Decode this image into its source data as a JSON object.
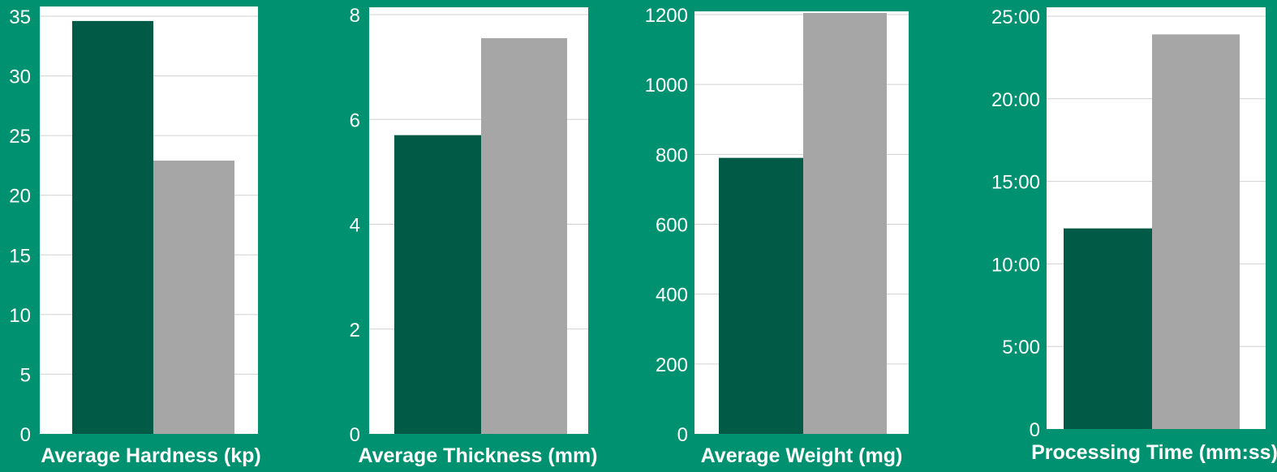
{
  "colors": {
    "background": "#009270",
    "plot_area": "#ffffff",
    "series_a": "#005a45",
    "series_b": "#a6a6a6",
    "text": "#ffffff"
  },
  "chart_data": [
    {
      "type": "bar",
      "xlabel": "Average Hardness (kp)",
      "ylim": [
        0,
        35
      ],
      "yticks": [
        0,
        5,
        10,
        15,
        20,
        25,
        30,
        35
      ],
      "ytick_labels": [
        "0",
        "5",
        "10",
        "15",
        "20",
        "25",
        "30",
        "35"
      ],
      "grid": true,
      "values": [
        34.6,
        22.9
      ]
    },
    {
      "type": "bar",
      "xlabel": "Average Thickness (mm)",
      "ylim": [
        0,
        8
      ],
      "yticks": [
        0,
        2,
        4,
        6,
        8
      ],
      "ytick_labels": [
        "0",
        "2",
        "4",
        "6",
        "8"
      ],
      "grid": true,
      "values": [
        5.7,
        7.55
      ]
    },
    {
      "type": "bar",
      "xlabel": "Average Weight (mg)",
      "ylim": [
        0,
        1200
      ],
      "yticks": [
        0,
        200,
        400,
        600,
        800,
        1000,
        1200
      ],
      "ytick_labels": [
        "0",
        "200",
        "400",
        "600",
        "800",
        "1000",
        "1200"
      ],
      "grid": true,
      "values": [
        790,
        1230
      ]
    },
    {
      "type": "bar",
      "xlabel": "Processing Time (mm:ss)",
      "ylim": [
        0,
        1500
      ],
      "yticks": [
        0,
        300,
        600,
        900,
        1200,
        1500
      ],
      "ytick_labels": [
        "0",
        "5:00",
        "10:00",
        "15:00",
        "20:00",
        "25:00"
      ],
      "grid": true,
      "values": [
        729,
        1434
      ]
    }
  ]
}
